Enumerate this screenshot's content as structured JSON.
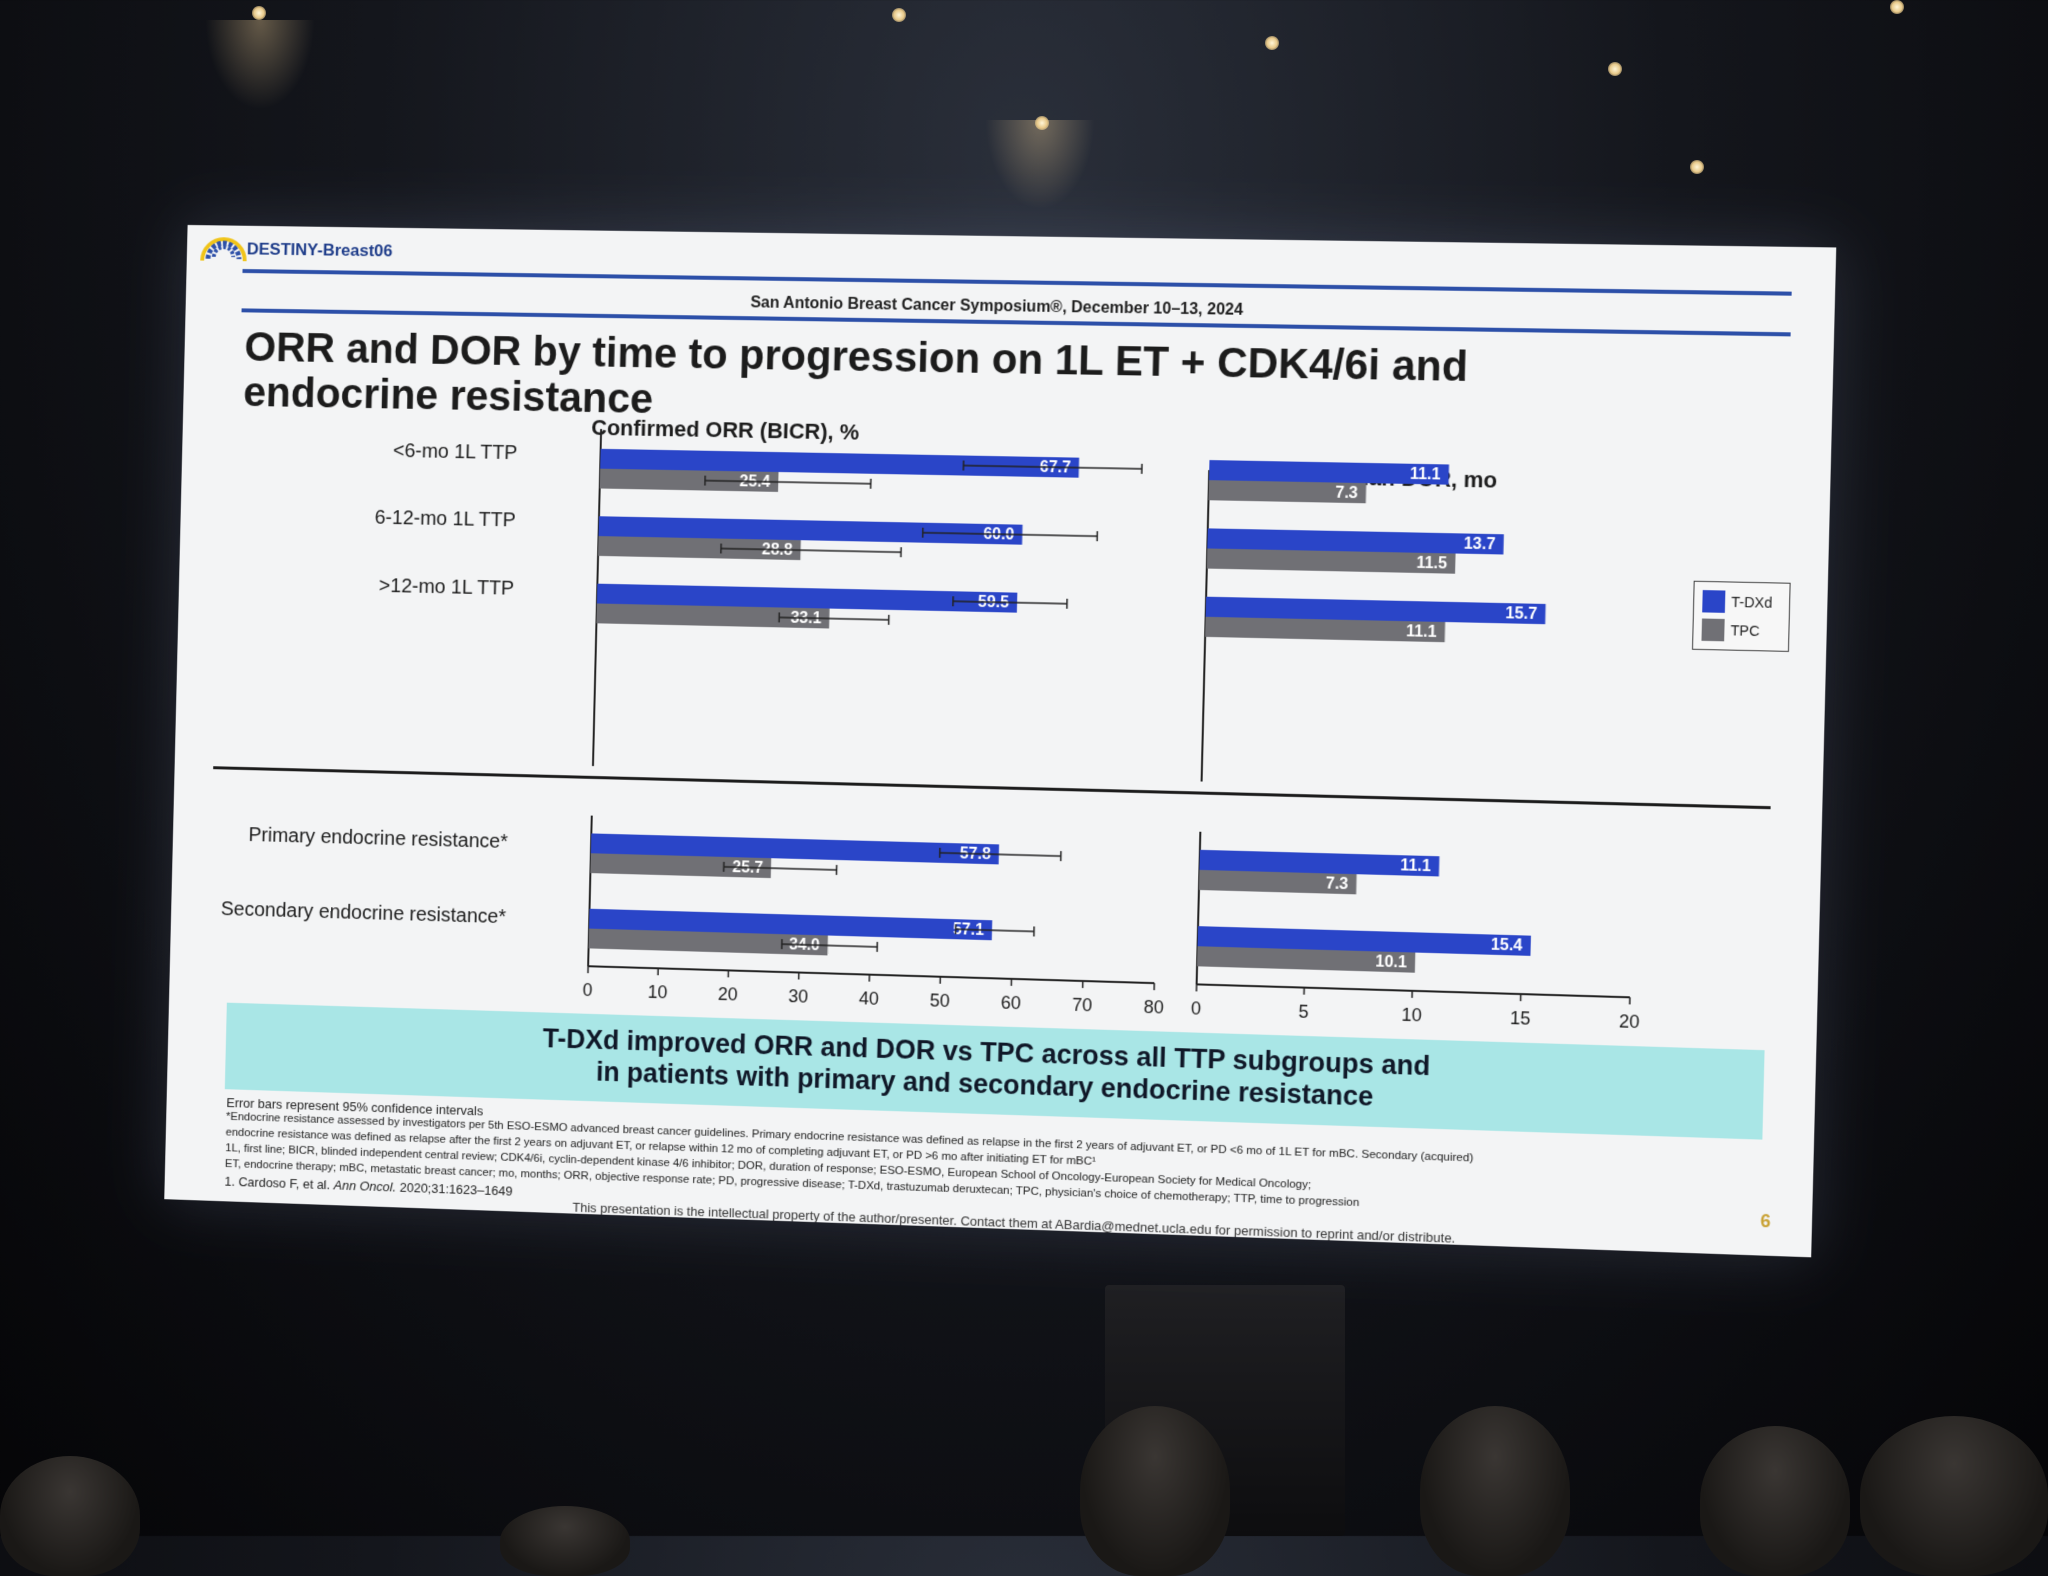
{
  "header": {
    "logo_text": "DESTINY-Breast06",
    "conference": "San Antonio Breast Cancer Symposium®, December 10–13, 2024",
    "title_line1": "ORR and DOR by time to progression on 1L ET + CDK4/6i and",
    "title_line2": "endocrine resistance"
  },
  "legend": [
    {
      "name": "T-DXd",
      "color": "#2a45c8"
    },
    {
      "name": "TPC",
      "color": "#707075"
    }
  ],
  "row_labels": [
    "<6-mo 1L TTP",
    "6-12-mo 1L TTP",
    ">12-mo 1L TTP",
    "Primary endocrine resistance*",
    "Secondary endocrine resistance*"
  ],
  "chart_data": [
    {
      "type": "bar",
      "orientation": "horizontal",
      "title": "Confirmed ORR (BICR), %",
      "categories": [
        "<6-mo 1L TTP",
        "6-12-mo 1L TTP",
        ">12-mo 1L TTP",
        "Primary endocrine resistance*",
        "Secondary endocrine resistance*"
      ],
      "series": [
        {
          "name": "T-DXd",
          "values": [
            67.7,
            60.0,
            59.5,
            57.8,
            57.1
          ],
          "ci_low": [
            51.5,
            46.0,
            50.5,
            49.5,
            52.0
          ],
          "ci_high": [
            76.5,
            70.5,
            66.5,
            66.5,
            63.0
          ]
        },
        {
          "name": "TPC",
          "values": [
            25.4,
            28.8,
            33.1,
            25.7,
            34.0
          ],
          "ci_low": [
            15.0,
            17.5,
            26.0,
            19.0,
            27.5
          ],
          "ci_high": [
            38.5,
            43.0,
            41.5,
            35.0,
            41.0
          ]
        }
      ],
      "value_labels": {
        "T-DXd": [
          "67.7",
          "60.0",
          "59.5",
          "57.8",
          "57.1"
        ],
        "TPC": [
          "25.4",
          "28.8",
          "33.1",
          "25.7",
          "34.0"
        ]
      },
      "xlim": [
        0,
        80
      ],
      "xticks": [
        "0",
        "10",
        "20",
        "30",
        "40",
        "50",
        "60",
        "70",
        "80"
      ],
      "error_bars": "95% CI"
    },
    {
      "type": "bar",
      "orientation": "horizontal",
      "title": "Median DOR, mo",
      "categories": [
        "<6-mo 1L TTP",
        "6-12-mo 1L TTP",
        ">12-mo 1L TTP",
        "Primary endocrine resistance*",
        "Secondary endocrine resistance*"
      ],
      "series": [
        {
          "name": "T-DXd",
          "values": [
            11.1,
            13.7,
            15.7,
            11.1,
            15.4
          ]
        },
        {
          "name": "TPC",
          "values": [
            7.3,
            11.5,
            11.1,
            7.3,
            10.1
          ]
        }
      ],
      "value_labels": {
        "T-DXd": [
          "11.1",
          "13.7",
          "15.7",
          "11.1",
          "15.4"
        ],
        "TPC": [
          "7.3",
          "11.5",
          "11.1",
          "7.3",
          "10.1"
        ]
      },
      "xlim": [
        0,
        20
      ],
      "xticks": [
        "0",
        "5",
        "10",
        "15",
        "20"
      ]
    }
  ],
  "banner": {
    "line1": "T-DXd improved ORR and DOR vs TPC across all TTP subgroups and",
    "line2": "in patients with primary and secondary endocrine resistance"
  },
  "footnotes": {
    "f1": "Error bars represent 95% confidence intervals",
    "f2": "*Endocrine resistance assessed by investigators per 5th ESO-ESMO advanced breast cancer guidelines. Primary endocrine resistance was defined as relapse in the first 2 years of adjuvant ET, or PD <6 mo of 1L ET for mBC. Secondary (acquired)",
    "f3": "endocrine resistance was defined as relapse after the first 2 years on adjuvant ET, or relapse within 12 mo of completing adjuvant ET, or PD >6 mo after initiating ET for mBC¹",
    "f4": "1L, first line; BICR, blinded independent central review; CDK4/6i, cyclin-dependent kinase 4/6 inhibitor; DOR, duration of response; ESO-ESMO, European School of Oncology-European Society for Medical Oncology;",
    "f5": "ET, endocrine therapy; mBC, metastatic breast cancer; mo, months; ORR, objective response rate; PD, progressive disease; T-DXd, trastuzumab deruxtecan; TPC, physician's choice of chemotherapy; TTP, time to progression",
    "ref_prefix": "1. Cardoso F, et al.",
    "ref_journal": "Ann Oncol.",
    "ref_suffix": "2020;31:1623–1649"
  },
  "page_number": "6",
  "ip_notice": "This presentation is the intellectual property of the author/presenter. Contact them at ABardia@mednet.ucla.edu for permission to reprint and/or distribute."
}
